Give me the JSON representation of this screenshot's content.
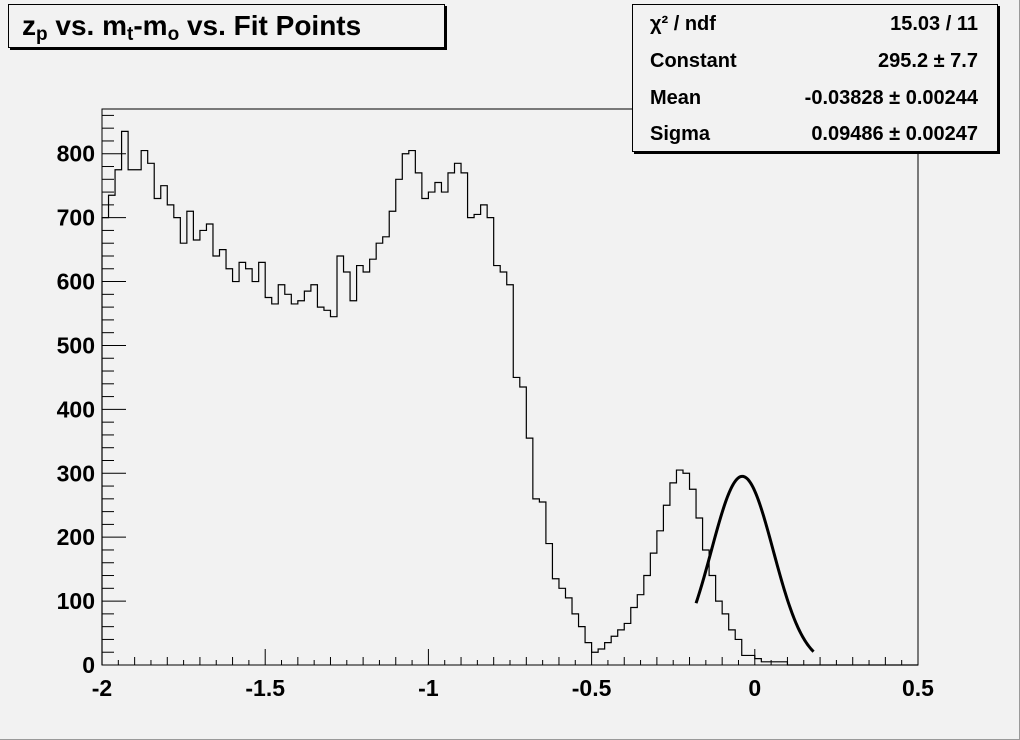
{
  "title": {
    "main": "z",
    "sub1": "p",
    "mid": " vs. m",
    "sub2": "t",
    "dash": "-m",
    "sub3": "o",
    "tail": " vs. Fit Points"
  },
  "stats": {
    "rows": [
      {
        "label": "χ² / ndf",
        "value": "15.03 / 11"
      },
      {
        "label": "Constant",
        "value": "295.2 ± 7.7"
      },
      {
        "label": "Mean",
        "value": "-0.03828 ± 0.00244"
      },
      {
        "label": "Sigma",
        "value": "0.09486 ± 0.00247"
      }
    ]
  },
  "chart_data": {
    "type": "histogram",
    "xlim": [
      -2,
      0.5
    ],
    "ylim": [
      0,
      870
    ],
    "x_ticks": [
      -2,
      -1.5,
      -1,
      -0.5,
      0,
      0.5
    ],
    "x_tick_labels": [
      "-2",
      "-1.5",
      "-1",
      "-0.5",
      "0",
      "0.5"
    ],
    "y_ticks": [
      0,
      100,
      200,
      300,
      400,
      500,
      600,
      700,
      800
    ],
    "y_tick_labels": [
      "0",
      "100",
      "200",
      "300",
      "400",
      "500",
      "600",
      "700",
      "800"
    ],
    "bin_edges_start": -2,
    "bin_width": 0.02,
    "counts": [
      700,
      735,
      775,
      835,
      775,
      775,
      805,
      785,
      730,
      750,
      720,
      700,
      660,
      710,
      665,
      680,
      690,
      640,
      650,
      620,
      600,
      630,
      620,
      600,
      630,
      575,
      565,
      595,
      580,
      565,
      570,
      585,
      595,
      560,
      555,
      545,
      640,
      615,
      570,
      625,
      615,
      635,
      660,
      670,
      710,
      760,
      800,
      805,
      770,
      730,
      740,
      755,
      740,
      770,
      785,
      770,
      700,
      705,
      720,
      700,
      625,
      615,
      595,
      450,
      435,
      355,
      260,
      255,
      190,
      135,
      120,
      105,
      80,
      60,
      35,
      20,
      25,
      35,
      45,
      55,
      65,
      90,
      110,
      140,
      175,
      210,
      250,
      285,
      305,
      300,
      275,
      230,
      180,
      140,
      100,
      80,
      55,
      40,
      15,
      15,
      10,
      5,
      5,
      5,
      5,
      0,
      0,
      0,
      0,
      0,
      0,
      0,
      0,
      0,
      0,
      0,
      0,
      0,
      0,
      0,
      0,
      0,
      0,
      0,
      0
    ],
    "fit": {
      "function": "gaus",
      "constant": 295.2,
      "mean": -0.03828,
      "sigma": 0.09486,
      "range": [
        -0.18,
        0.18
      ]
    }
  }
}
